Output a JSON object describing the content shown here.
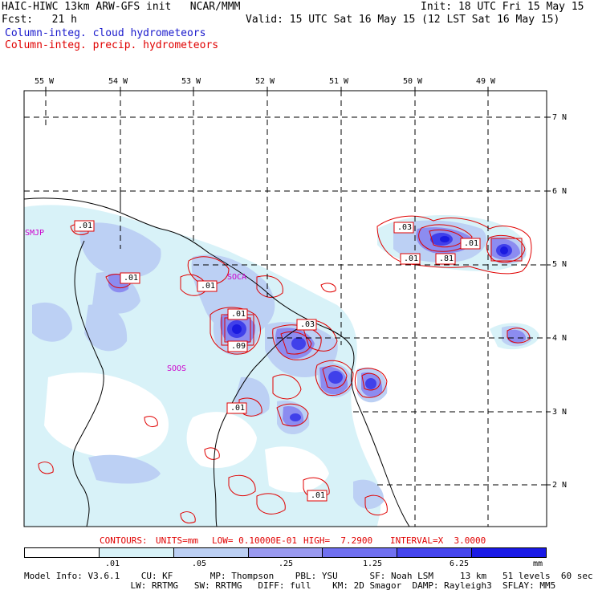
{
  "header": {
    "model_line": "HAIC-HIWC 13km ARW-GFS init   NCAR/MMM",
    "init": "Init: 18 UTC Fri 15 May 15",
    "fcst": "Fcst:   21 h",
    "valid": "Valid: 15 UTC Sat 16 May 15 (12 LST Sat 16 May 15)",
    "field1": "Column-integ. cloud hydrometeors",
    "field2": "Column-integ. precip. hydrometeors"
  },
  "axes": {
    "lon_labels": [
      "55 W",
      "54 W",
      "53 W",
      "52 W",
      "51 W",
      "50 W",
      "49 W"
    ],
    "lat_labels": [
      "7 N",
      "6 N",
      "5 N",
      "4 N",
      "3 N",
      "2 N"
    ]
  },
  "stations": [
    "SMJP",
    "SOCA",
    "SOOS"
  ],
  "contour_labels": [
    ".01",
    ".01",
    ".01",
    ".01",
    ".09",
    ".03",
    ".01",
    ".03",
    ".01",
    ".81",
    ".01",
    ".01"
  ],
  "contour_info": {
    "contours": "CONTOURS:",
    "units": "UNITS=mm",
    "low": "LOW= 0.10000E-01",
    "high": "HIGH=  7.2900",
    "interval": "INTERVAL=X  3.0000"
  },
  "colorbar": {
    "ticks": [
      ".01",
      ".05",
      ".25",
      "1.25",
      "6.25"
    ],
    "unit": "mm",
    "colors": [
      "#ffffff",
      "#d8f2f8",
      "#bcd0f4",
      "#9a9af0",
      "#7070f0",
      "#4545ee",
      "#1a1ae6"
    ]
  },
  "footer": {
    "line1": "Model Info: V3.6.1    CU: KF       MP: Thompson    PBL: YSU      SF: Noah LSM     13 km   51 levels  60 sec",
    "line2": "                    LW: RRTMG   SW: RRTMG   DIFF: full    KM: 2D Smagor  DAMP: Rayleigh3  SFLAY: MM5"
  }
}
